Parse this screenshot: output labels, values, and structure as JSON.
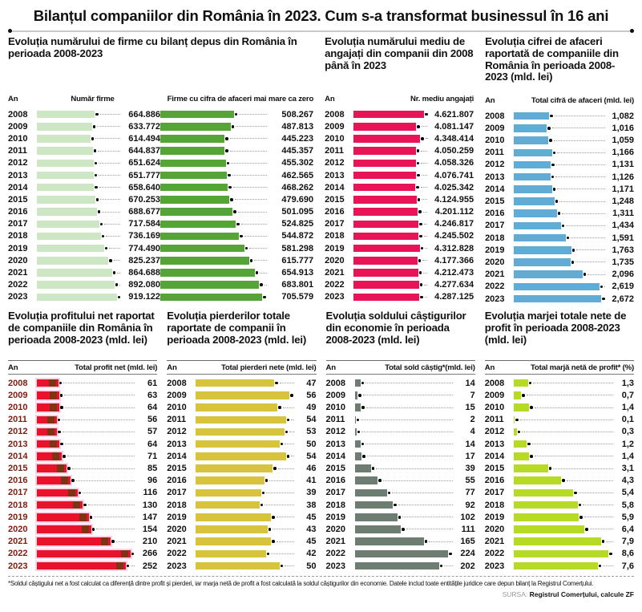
{
  "title": "Bilanțul companiilor din România în 2023. Cum s-a transformat businessul în 16 ani",
  "an_label": "An",
  "years": [
    "2008",
    "2009",
    "2010",
    "2011",
    "2012",
    "2013",
    "2014",
    "2015",
    "2016",
    "2017",
    "2018",
    "2019",
    "2020",
    "2021",
    "2022",
    "2023"
  ],
  "footnote": "*Soldul câștigului net a fost calculat ca diferență dintre profit și pierderi, iar marja netă de profit a fost calculată la soldul câștigurilor din economie. Datele includ toate entitățile juridice care depun bilanț la Registrul Comerțului.",
  "source": {
    "label": "SURSA:",
    "value": "Registrul Comerțului, calcule ZF"
  },
  "chart_data": [
    {
      "id": "firms",
      "type": "bar",
      "orientation": "horizontal",
      "title": "Evoluția numărului de firme cu bilanț depus din România în perioada 2008-2023",
      "categories": [
        "2008",
        "2009",
        "2010",
        "2011",
        "2012",
        "2013",
        "2014",
        "2015",
        "2016",
        "2017",
        "2018",
        "2019",
        "2020",
        "2021",
        "2022",
        "2023"
      ],
      "series": [
        {
          "name": "Număr firme",
          "color": "#cde7c5",
          "format": "dot",
          "values": [
            664886,
            633772,
            614494,
            644837,
            651624,
            651777,
            658640,
            670253,
            688677,
            717584,
            736169,
            774490,
            825237,
            864688,
            892080,
            919122
          ]
        },
        {
          "name": "Firme cu cifra de afaceri mai mare ca zero",
          "color": "#54a436",
          "format": "dot",
          "values": [
            508267,
            487813,
            445223,
            445357,
            455302,
            462565,
            468262,
            479690,
            501095,
            524825,
            544872,
            581298,
            615777,
            654913,
            683801,
            705579
          ]
        }
      ]
    },
    {
      "id": "employees",
      "type": "bar",
      "orientation": "horizontal",
      "title": "Evoluția numărului mediu de angajați din companii din 2008 până în 2023",
      "categories": [
        "2008",
        "2009",
        "2010",
        "2011",
        "2012",
        "2013",
        "2014",
        "2015",
        "2016",
        "2017",
        "2018",
        "2019",
        "2020",
        "2021",
        "2022",
        "2023"
      ],
      "series": [
        {
          "name": "Nr. mediu angajați",
          "color": "#e91458",
          "format": "dot",
          "values": [
            4621807,
            4081147,
            4348414,
            4050259,
            4058326,
            4076741,
            4025342,
            4124955,
            4201112,
            4246817,
            4245502,
            4312828,
            4177366,
            4212473,
            4277634,
            4287125
          ]
        }
      ]
    },
    {
      "id": "turnover",
      "type": "bar",
      "orientation": "horizontal",
      "title": "Evoluția cifrei de afaceri raportată de companiile din România în perioada 2008-2023 (mld. lei)",
      "categories": [
        "2008",
        "2009",
        "2010",
        "2011",
        "2012",
        "2013",
        "2014",
        "2015",
        "2016",
        "2017",
        "2018",
        "2019",
        "2020",
        "2021",
        "2022",
        "2023"
      ],
      "series": [
        {
          "name": "Total cifră de afaceri (mld. lei)",
          "color": "#61acd4",
          "format": "comma",
          "values": [
            1082,
            1016,
            1059,
            1166,
            1131,
            1126,
            1171,
            1248,
            1311,
            1434,
            1591,
            1763,
            1735,
            2096,
            2619,
            2672
          ]
        }
      ]
    },
    {
      "id": "net-profit",
      "type": "bar",
      "orientation": "horizontal",
      "title": "Evoluția profitului net raportat de companiile din România în perioada 2008-2023 (mld. lei)",
      "categories": [
        "2008",
        "2009",
        "2010",
        "2011",
        "2012",
        "2013",
        "2014",
        "2015",
        "2016",
        "2017",
        "2018",
        "2019",
        "2020",
        "2021",
        "2022",
        "2023"
      ],
      "series": [
        {
          "name": "Total profit net (mld. lei)",
          "color": "#e8132b",
          "cap_color": "#7d3413",
          "halo_color": "#fbd3e4",
          "format": "plain",
          "values": [
            61,
            63,
            64,
            56,
            57,
            64,
            71,
            85,
            96,
            116,
            130,
            147,
            154,
            210,
            266,
            252
          ]
        }
      ]
    },
    {
      "id": "losses",
      "type": "bar",
      "orientation": "horizontal",
      "title": "Evoluția pierderilor totale raportate de companii în perioada 2008-2023 (mld. lei)",
      "categories": [
        "2008",
        "2009",
        "2010",
        "2011",
        "2012",
        "2013",
        "2014",
        "2015",
        "2016",
        "2017",
        "2018",
        "2019",
        "2020",
        "2021",
        "2022",
        "2023"
      ],
      "series": [
        {
          "name": "Total pierderi nete (mld. lei)",
          "color": "#d8c33c",
          "format": "plain",
          "values": [
            47,
            56,
            49,
            54,
            53,
            50,
            54,
            46,
            41,
            39,
            38,
            45,
            43,
            45,
            42,
            50
          ]
        }
      ]
    },
    {
      "id": "net-balance",
      "type": "bar",
      "orientation": "horizontal",
      "title": "Evoluția soldului câștigurilor din economie în perioada 2008-2023 (mld. lei)",
      "categories": [
        "2008",
        "2009",
        "2010",
        "2011",
        "2012",
        "2013",
        "2014",
        "2015",
        "2016",
        "2017",
        "2018",
        "2019",
        "2020",
        "2021",
        "2022",
        "2023"
      ],
      "series": [
        {
          "name": "Total sold câștig*(mld. lei)",
          "color": "#6e7d72",
          "format": "plain",
          "values": [
            14,
            7,
            15,
            2,
            4,
            14,
            17,
            39,
            55,
            77,
            92,
            102,
            111,
            165,
            224,
            202
          ]
        }
      ]
    },
    {
      "id": "net-margin",
      "type": "bar",
      "orientation": "horizontal",
      "title": "Evoluția marjei totale nete de profit  în perioada 2008-2023 (mld. lei)",
      "categories": [
        "2008",
        "2009",
        "2010",
        "2011",
        "2012",
        "2013",
        "2014",
        "2015",
        "2016",
        "2017",
        "2018",
        "2019",
        "2020",
        "2021",
        "2022",
        "2023"
      ],
      "series": [
        {
          "name": "Total marjă netă de profit* (%)",
          "color": "#b7db24",
          "format": "dec1",
          "values": [
            1.3,
            0.7,
            1.4,
            0.1,
            0.3,
            1.2,
            1.4,
            3.1,
            4.3,
            5.4,
            5.8,
            5.9,
            6.4,
            7.9,
            8.6,
            7.6
          ]
        }
      ]
    }
  ]
}
